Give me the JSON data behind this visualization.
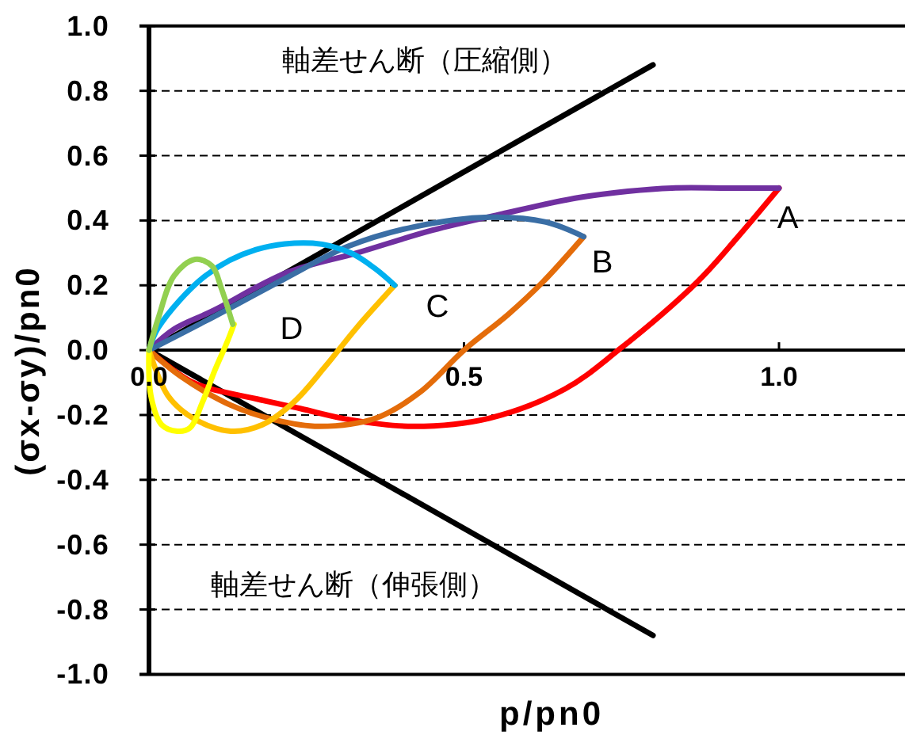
{
  "chart_data": {
    "type": "line",
    "xlabel": "p/pn0",
    "ylabel": "(σx-σy)/pn0",
    "xlim": [
      0,
      1.2
    ],
    "ylim": [
      -1,
      1
    ],
    "xticks": [
      {
        "value": 0,
        "label": "0.0"
      },
      {
        "value": 0.5,
        "label": "0.5"
      },
      {
        "value": 1,
        "label": "1.0"
      }
    ],
    "yticks": [
      {
        "value": -1,
        "label": "-1.0"
      },
      {
        "value": -0.8,
        "label": "-0.8"
      },
      {
        "value": -0.6,
        "label": "-0.6"
      },
      {
        "value": -0.4,
        "label": "-0.4"
      },
      {
        "value": -0.2,
        "label": "-0.2"
      },
      {
        "value": 0,
        "label": "0.0"
      },
      {
        "value": 0.2,
        "label": "0.2"
      },
      {
        "value": 0.4,
        "label": "0.4"
      },
      {
        "value": 0.6,
        "label": "0.6"
      },
      {
        "value": 0.8,
        "label": "0.8"
      },
      {
        "value": 1,
        "label": "1.0"
      }
    ],
    "grid": "y",
    "annotations": [
      "軸差せん断（圧縮側）",
      "軸差せん断（伸張側）",
      "A",
      "B",
      "C",
      "D"
    ],
    "series": [
      {
        "color": "#000000",
        "x": [
          0,
          0.8
        ],
        "values": [
          0,
          0.88
        ]
      },
      {
        "color": "#000000",
        "x": [
          0,
          0.8
        ],
        "values": [
          0,
          -0.88
        ]
      },
      {
        "color": "#ff0000",
        "x": [
          0,
          0.07,
          0.17,
          0.24,
          0.32,
          0.42,
          0.54,
          0.66,
          0.745,
          0.87,
          0.935,
          1.0
        ],
        "values": [
          0,
          -0.1,
          -0.15,
          -0.18,
          -0.215,
          -0.235,
          -0.21,
          -0.12,
          0,
          0.21,
          0.35,
          0.5
        ]
      },
      {
        "color": "#7030a0",
        "x": [
          0,
          0.04,
          0.1,
          0.22,
          0.33,
          0.45,
          0.56,
          0.68,
          0.76,
          0.83,
          0.92,
          1.0
        ],
        "values": [
          0,
          0.065,
          0.12,
          0.24,
          0.3,
          0.37,
          0.42,
          0.47,
          0.49,
          0.5,
          0.5,
          0.5
        ]
      },
      {
        "color": "#e46c0a",
        "x": [
          0,
          0.05,
          0.13,
          0.2,
          0.27,
          0.36,
          0.43,
          0.5,
          0.57,
          0.625,
          0.69
        ],
        "values": [
          0,
          -0.08,
          -0.17,
          -0.215,
          -0.235,
          -0.21,
          -0.13,
          0,
          0.11,
          0.21,
          0.35
        ]
      },
      {
        "color": "#3a6ea5",
        "x": [
          0,
          0.09,
          0.215,
          0.316,
          0.42,
          0.54,
          0.63,
          0.69
        ],
        "values": [
          0,
          0.09,
          0.22,
          0.32,
          0.38,
          0.41,
          0.395,
          0.35
        ]
      },
      {
        "color": "#ffc000",
        "x": [
          0,
          0.03,
          0.07,
          0.13,
          0.18,
          0.23,
          0.28,
          0.33,
          0.39
        ],
        "values": [
          0,
          -0.14,
          -0.21,
          -0.25,
          -0.23,
          -0.16,
          -0.05,
          0.07,
          0.2
        ]
      },
      {
        "color": "#00b0f0",
        "x": [
          0,
          0.015,
          0.09,
          0.17,
          0.26,
          0.32,
          0.36,
          0.39
        ],
        "values": [
          0,
          0.07,
          0.23,
          0.31,
          0.33,
          0.3,
          0.25,
          0.2
        ]
      },
      {
        "color": "#ffff00",
        "x": [
          0,
          0.003,
          0.02,
          0.045,
          0.065,
          0.085,
          0.105,
          0.123,
          0.135
        ],
        "values": [
          0,
          -0.14,
          -0.23,
          -0.25,
          -0.24,
          -0.16,
          -0.06,
          0.02,
          0.08
        ]
      },
      {
        "color": "#92d050",
        "x": [
          0,
          0.015,
          0.04,
          0.073,
          0.1,
          0.115,
          0.133
        ],
        "values": [
          0,
          0.1,
          0.23,
          0.28,
          0.26,
          0.19,
          0.08
        ]
      }
    ]
  }
}
